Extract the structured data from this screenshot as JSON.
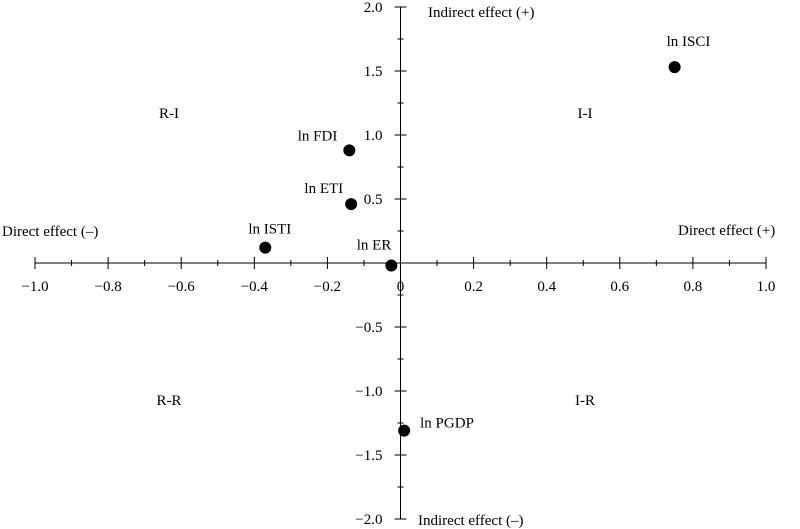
{
  "chart_data": {
    "type": "scatter",
    "xlim": [
      -1.0,
      1.0
    ],
    "ylim": [
      -2.0,
      2.0
    ],
    "x_ticks": [
      -1.0,
      -0.8,
      -0.6,
      -0.4,
      -0.2,
      0,
      0.2,
      0.4,
      0.6,
      0.8,
      1.0
    ],
    "x_tick_labels": [
      "−1.0",
      "−0.8",
      "−0.6",
      "−0.4",
      "−0.2",
      "0",
      "0.2",
      "0.4",
      "0.6",
      "0.8",
      "1.0"
    ],
    "y_ticks": [
      2.0,
      1.5,
      1.0,
      0.5,
      -0.5,
      -1.0,
      -1.5,
      -2.0
    ],
    "y_tick_labels": [
      "2.0",
      "1.5",
      "1.0",
      "0.5",
      "−0.5",
      "−1.0",
      "−1.5",
      "−2.0"
    ],
    "grid": false,
    "points": [
      {
        "label": "ln ISCI",
        "x": 0.75,
        "y": 1.53
      },
      {
        "label": "ln FDI",
        "x": -0.14,
        "y": 0.88
      },
      {
        "label": "ln ETI",
        "x": -0.135,
        "y": 0.46
      },
      {
        "label": "ln ISTI",
        "x": -0.37,
        "y": 0.12
      },
      {
        "label": "ln ER",
        "x": -0.025,
        "y": -0.02
      },
      {
        "label": "ln PGDP",
        "x": 0.01,
        "y": -1.31
      }
    ],
    "annotations": {
      "indirect_pos": "Indirect effect (+)",
      "indirect_neg": "Indirect effect (–)",
      "direct_pos": "Direct effect (+)",
      "direct_neg": "Direct effect (–)",
      "q_ii": "I-I",
      "q_ri": "R-I",
      "q_rr": "R-R",
      "q_ir": "I-R"
    }
  }
}
